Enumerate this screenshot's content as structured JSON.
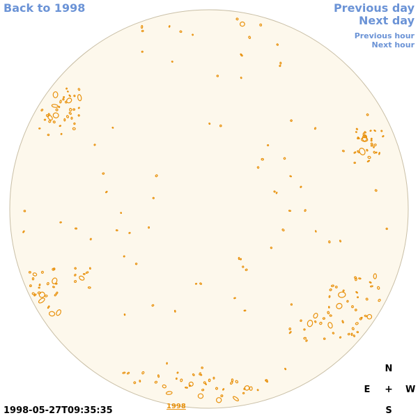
{
  "nav": {
    "back": "Back to 1998",
    "previous_day": "Previous day",
    "next_day": "Next day",
    "previous_hour": "Previous hour",
    "next_hour": "Next hour"
  },
  "footer": {
    "timestamp": "1998-05-27T09:35:35",
    "year_link": "1998"
  },
  "compass": {
    "north": "N",
    "east": "E",
    "center": "+",
    "west": "W",
    "south": "S"
  },
  "colors": {
    "disk_fill": "#fdf8ec",
    "disk_stroke": "#c9bfa6",
    "contour": "#e8900a",
    "link": "#6b93d6"
  }
}
